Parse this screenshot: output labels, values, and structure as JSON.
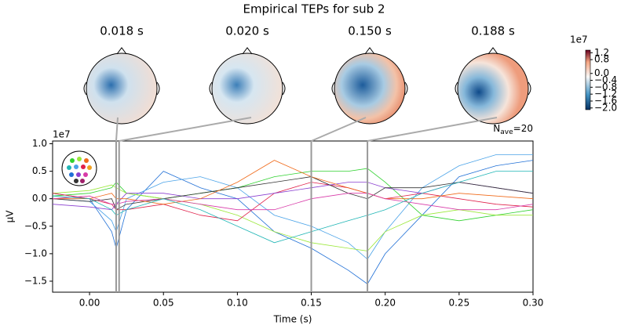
{
  "chart_data": [
    {
      "type": "line",
      "title": "Empirical TEPs for sub 2",
      "xlabel": "Time (s)",
      "ylabel": "µV",
      "y_offset_label": "1e7",
      "annotation": [
        "N",
        "ave",
        "=20"
      ],
      "topomaps": [
        {
          "label": "0.018 s",
          "time": 0.018
        },
        {
          "label": "0.020 s",
          "time": 0.02
        },
        {
          "label": "0.150 s",
          "time": 0.15
        },
        {
          "label": "0.188 s",
          "time": 0.188
        }
      ],
      "xlim": [
        -0.025,
        0.3
      ],
      "ylim": [
        -1.7,
        1.05
      ],
      "xticks": [
        {
          "value": 0,
          "label": "0.00"
        },
        0.05,
        {
          "value": 0.1,
          "label": "0.10"
        },
        0.15,
        {
          "value": 0.2,
          "label": "0.20"
        },
        0.25,
        {
          "value": 0.3,
          "label": "0.30"
        }
      ],
      "yticks": [
        {
          "value": 1,
          "label": "1.0"
        },
        0.5,
        {
          "value": 0,
          "label": "0.0"
        },
        -0.5,
        {
          "value": -1,
          "label": "-1.0"
        },
        -1.5
      ],
      "x": [
        -0.025,
        0,
        0.015,
        0.018,
        0.025,
        0.05,
        0.075,
        0.1,
        0.125,
        0.15,
        0.175,
        0.188,
        0.2,
        0.225,
        0.25,
        0.275,
        0.3
      ],
      "series": [
        {
          "color": "#1f6fd6",
          "values": [
            0.1,
            0.0,
            -0.6,
            -0.9,
            -0.2,
            0.5,
            0.2,
            0.0,
            -0.6,
            -0.9,
            -1.3,
            -1.55,
            -1.0,
            -0.3,
            0.4,
            0.6,
            0.7
          ]
        },
        {
          "color": "#4aa3e8",
          "values": [
            0.0,
            -0.05,
            -0.4,
            -0.6,
            0.0,
            0.3,
            0.4,
            0.2,
            -0.3,
            -0.5,
            -0.8,
            -1.1,
            -0.6,
            0.2,
            0.6,
            0.8,
            0.8
          ]
        },
        {
          "color": "#2fd12f",
          "values": [
            0.05,
            0.1,
            0.2,
            0.3,
            0.1,
            0.0,
            0.1,
            0.2,
            0.4,
            0.5,
            0.5,
            0.55,
            0.3,
            -0.3,
            -0.4,
            -0.3,
            -0.2
          ]
        },
        {
          "color": "#9be83a",
          "values": [
            0.1,
            0.15,
            0.25,
            0.2,
            0.1,
            0.0,
            -0.1,
            -0.3,
            -0.6,
            -0.8,
            -0.9,
            -0.95,
            -0.6,
            -0.3,
            -0.2,
            -0.3,
            -0.3
          ]
        },
        {
          "color": "#e0204a",
          "values": [
            0.1,
            0.0,
            -0.1,
            -0.2,
            -0.2,
            -0.1,
            -0.3,
            -0.4,
            0.1,
            0.3,
            0.2,
            0.1,
            0.0,
            0.1,
            0.0,
            -0.1,
            -0.15
          ]
        },
        {
          "color": "#8a3fd0",
          "values": [
            -0.1,
            -0.15,
            -0.2,
            -0.1,
            0.1,
            0.1,
            0.0,
            0.0,
            0.1,
            0.2,
            0.3,
            0.3,
            0.2,
            0.1,
            0.3,
            0.2,
            0.1
          ]
        },
        {
          "color": "#333333",
          "values": [
            0.0,
            -0.05,
            0.0,
            -0.2,
            -0.1,
            0.0,
            0.1,
            0.2,
            0.3,
            0.4,
            0.1,
            0.0,
            0.2,
            0.2,
            0.3,
            0.2,
            0.1
          ]
        },
        {
          "color": "#f06a1a",
          "values": [
            0.0,
            0.0,
            0.1,
            0.0,
            0.0,
            -0.1,
            0.0,
            0.3,
            0.7,
            0.4,
            0.2,
            0.1,
            0.0,
            0.0,
            0.1,
            0.05,
            0.0
          ]
        },
        {
          "color": "#d83aa8",
          "values": [
            0.0,
            0.05,
            -0.1,
            -0.1,
            -0.05,
            0.0,
            -0.1,
            -0.2,
            -0.2,
            0.0,
            0.1,
            0.1,
            0.0,
            -0.1,
            -0.2,
            -0.2,
            -0.1
          ]
        },
        {
          "color": "#1fb5b5",
          "values": [
            0.05,
            0.0,
            -0.2,
            -0.3,
            -0.2,
            0.0,
            -0.2,
            -0.5,
            -0.8,
            -0.6,
            -0.4,
            -0.3,
            -0.2,
            0.1,
            0.3,
            0.5,
            0.5
          ]
        }
      ]
    },
    {
      "type": "colorbar",
      "offset_label": "1e7",
      "ylim": [
        -2.1,
        1.35
      ],
      "yticks": [
        1.2,
        0.8,
        {
          "value": 0,
          "label": "0.0"
        },
        -0.4,
        -0.8,
        -1.2,
        -1.6,
        {
          "value": -2,
          "label": "-2.0"
        }
      ]
    }
  ]
}
